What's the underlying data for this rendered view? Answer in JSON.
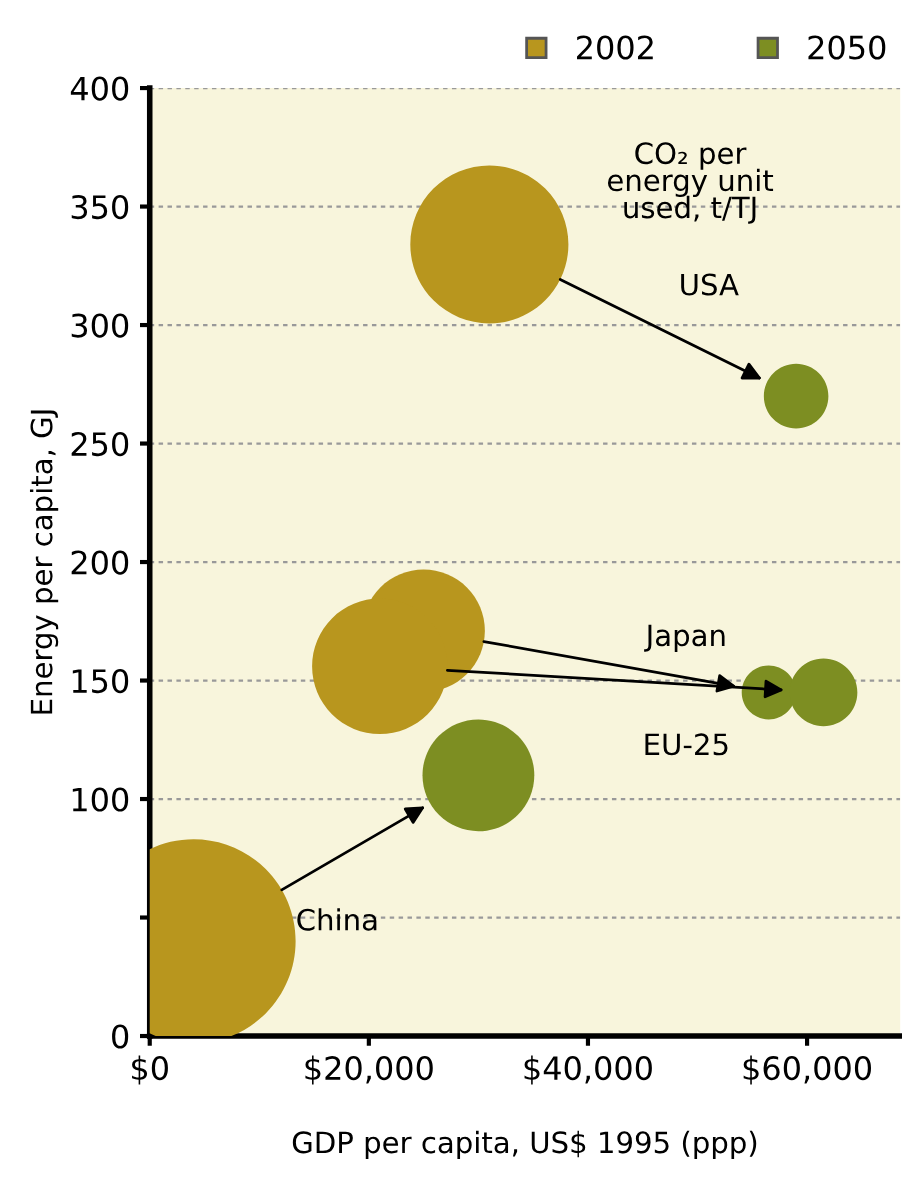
{
  "chart_data": {
    "type": "bubble",
    "xlabel": "GDP per capita, US$ 1995 (ppp)",
    "ylabel": "Energy per capita, GJ",
    "series": [
      {
        "name": "2002",
        "color": "#b8961e",
        "x": [
          31000,
          25000,
          21000,
          4000
        ],
        "values": [
          334,
          171,
          156,
          40
        ],
        "sizes": [
          0.6,
          0.36,
          0.44,
          1
        ]
      },
      {
        "name": "2050",
        "color": "#7d8e22",
        "x": [
          59000,
          56500,
          61500,
          30000
        ],
        "values": [
          270,
          145,
          145,
          110
        ],
        "sizes": [
          0.1,
          0.07,
          0.11,
          0.3
        ]
      }
    ],
    "annotations": [
      "USA",
      "Japan",
      "EU-25",
      "China",
      "CO₂ per\nenergy unit\nused, t/TJ"
    ],
    "xlim": [
      0,
      68500
    ],
    "ylim": [
      0,
      400
    ],
    "xticks": [
      {
        "value": 0,
        "label": "$0"
      },
      {
        "value": 20000,
        "label": "$20,000"
      },
      {
        "value": 40000,
        "label": "$40,000"
      },
      {
        "value": 60000,
        "label": "$60,000"
      }
    ],
    "yticks": [
      0,
      {
        "value": 50,
        "label": null
      },
      100,
      150,
      200,
      250,
      300,
      350,
      400
    ],
    "grid": "y",
    "legend": "top right",
    "marker": "circle"
  }
}
